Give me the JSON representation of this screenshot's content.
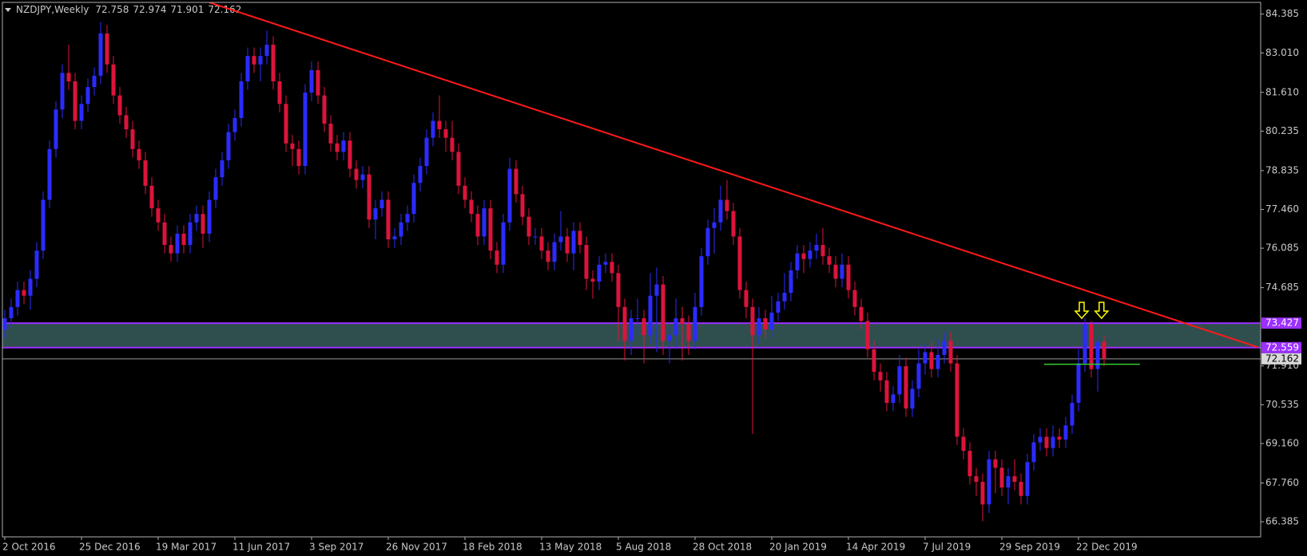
{
  "chart_data": {
    "type": "candlestick",
    "title": "NZDJPY,Weekly",
    "categories": [
      "2 Oct 2016",
      null,
      null,
      null,
      null,
      null,
      null,
      null,
      null,
      null,
      null,
      null,
      "25 Dec 2016",
      null,
      null,
      null,
      null,
      null,
      null,
      null,
      null,
      null,
      null,
      null,
      "19 Mar 2017",
      null,
      null,
      null,
      null,
      null,
      null,
      null,
      null,
      null,
      null,
      null,
      "11 Jun 2017",
      null,
      null,
      null,
      null,
      null,
      null,
      null,
      null,
      null,
      null,
      null,
      "3 Sep 2017",
      null,
      null,
      null,
      null,
      null,
      null,
      null,
      null,
      null,
      null,
      null,
      "26 Nov 2017",
      null,
      null,
      null,
      null,
      null,
      null,
      null,
      null,
      null,
      null,
      null,
      "18 Feb 2018",
      null,
      null,
      null,
      null,
      null,
      null,
      null,
      null,
      null,
      null,
      null,
      "13 May 2018",
      null,
      null,
      null,
      null,
      null,
      null,
      null,
      null,
      null,
      null,
      null,
      "5 Aug 2018",
      null,
      null,
      null,
      null,
      null,
      null,
      null,
      null,
      null,
      null,
      null,
      "28 Oct 2018",
      null,
      null,
      null,
      null,
      null,
      null,
      null,
      null,
      null,
      null,
      null,
      "20 Jan 2019",
      null,
      null,
      null,
      null,
      null,
      null,
      null,
      null,
      null,
      null,
      null,
      "14 Apr 2019",
      null,
      null,
      null,
      null,
      null,
      null,
      null,
      null,
      null,
      null,
      null,
      "7 Jul 2019",
      null,
      null,
      null,
      null,
      null,
      null,
      null,
      null,
      null,
      null,
      null,
      "29 Sep 2019",
      null,
      null,
      null,
      null,
      null,
      null,
      null,
      null,
      null,
      null,
      null,
      "22 Dec 2019",
      null,
      null,
      null,
      null
    ],
    "open": [
      73.2,
      73.6,
      74.0,
      74.6,
      74.4,
      75.0,
      76.0,
      77.8,
      79.6,
      81.0,
      82.3,
      82.0,
      80.6,
      81.2,
      81.8,
      82.2,
      83.7,
      82.6,
      81.5,
      80.8,
      80.3,
      79.6,
      79.2,
      78.3,
      77.5,
      77.0,
      76.2,
      75.9,
      76.6,
      76.2,
      77.0,
      77.3,
      76.6,
      77.8,
      78.6,
      79.2,
      80.2,
      80.7,
      82.0,
      82.9,
      82.6,
      82.9,
      83.3,
      82.0,
      81.2,
      79.8,
      79.6,
      79.0,
      81.6,
      82.4,
      81.5,
      80.5,
      79.8,
      79.5,
      79.9,
      78.9,
      78.5,
      78.7,
      77.1,
      77.5,
      77.8,
      76.4,
      76.5,
      77.0,
      77.3,
      78.4,
      79.0,
      80.0,
      80.6,
      80.3,
      80.0,
      79.5,
      78.3,
      77.8,
      77.3,
      76.5,
      77.5,
      76.0,
      75.5,
      77.0,
      78.9,
      78.0,
      77.2,
      76.5,
      76.5,
      76.0,
      75.6,
      76.3,
      76.5,
      75.9,
      76.7,
      76.2,
      75.0,
      74.9,
      75.5,
      75.6,
      75.2,
      74.0,
      72.8,
      73.6,
      73.6,
      73.0,
      74.4,
      74.8,
      72.8,
      73.0,
      73.6,
      73.4,
      72.8,
      74.0,
      75.8,
      76.8,
      77.0,
      77.8,
      77.4,
      76.5,
      74.6,
      74.0,
      73.0,
      73.6,
      73.2,
      73.8,
      74.2,
      74.5,
      75.3,
      75.9,
      75.7,
      76.0,
      76.2,
      75.8,
      75.5,
      75.0,
      75.5,
      74.6,
      74.0,
      73.5,
      72.5,
      71.7,
      71.4,
      70.6,
      70.9,
      71.9,
      70.4,
      71.1,
      72.0,
      72.4,
      71.8,
      72.3,
      72.8,
      72.0,
      69.4,
      68.9,
      68.0,
      67.8,
      67.0,
      68.6,
      68.3,
      67.6,
      68.0,
      67.8,
      67.3,
      68.5,
      69.2,
      69.4,
      69.0,
      69.4,
      69.3,
      69.8,
      70.6,
      72.0,
      73.4,
      71.8,
      72.758
    ],
    "high": [
      73.9,
      74.3,
      74.9,
      74.9,
      75.3,
      76.3,
      78.1,
      79.9,
      81.3,
      82.6,
      83.3,
      82.3,
      81.5,
      82.1,
      82.5,
      84.1,
      84.0,
      82.9,
      81.8,
      81.1,
      80.6,
      79.9,
      79.5,
      78.6,
      77.8,
      77.3,
      76.5,
      76.9,
      76.9,
      77.3,
      77.6,
      77.6,
      78.1,
      78.9,
      79.5,
      80.5,
      81.0,
      82.3,
      83.2,
      83.2,
      83.2,
      83.8,
      83.6,
      82.3,
      81.5,
      80.1,
      79.9,
      81.9,
      82.7,
      82.7,
      81.8,
      80.8,
      80.1,
      80.2,
      80.2,
      79.2,
      79.0,
      79.0,
      77.8,
      78.1,
      78.1,
      76.8,
      77.3,
      77.6,
      78.7,
      79.3,
      80.3,
      80.9,
      81.5,
      80.6,
      80.6,
      79.8,
      78.6,
      78.1,
      77.6,
      77.8,
      77.8,
      76.3,
      77.3,
      79.3,
      79.2,
      78.3,
      77.5,
      76.8,
      76.8,
      76.3,
      76.6,
      77.4,
      76.8,
      77.0,
      77.0,
      76.5,
      75.3,
      75.8,
      75.9,
      75.9,
      75.5,
      74.3,
      73.9,
      74.3,
      73.9,
      75.2,
      75.4,
      75.1,
      73.3,
      74.3,
      74.0,
      73.7,
      74.5,
      76.1,
      77.1,
      77.5,
      78.3,
      78.5,
      77.7,
      76.8,
      74.9,
      74.3,
      74.0,
      73.9,
      74.4,
      74.5,
      75.2,
      75.6,
      76.2,
      76.2,
      76.3,
      76.6,
      76.8,
      76.1,
      75.8,
      75.9,
      75.8,
      74.9,
      74.3,
      73.8,
      72.8,
      72.0,
      71.7,
      71.2,
      72.3,
      72.2,
      71.4,
      72.5,
      72.7,
      72.8,
      72.9,
      73.1,
      73.1,
      72.3,
      69.7,
      69.2,
      68.3,
      68.1,
      68.9,
      68.9,
      68.6,
      68.3,
      68.6,
      68.1,
      68.8,
      69.5,
      69.7,
      69.7,
      69.8,
      69.7,
      70.1,
      70.9,
      72.5,
      73.6,
      73.5,
      72.9,
      72.974
    ],
    "low": [
      72.9,
      73.3,
      73.7,
      74.1,
      73.9,
      74.7,
      75.7,
      77.5,
      79.3,
      80.7,
      81.7,
      80.3,
      80.3,
      80.9,
      81.5,
      81.9,
      82.3,
      81.2,
      80.5,
      80.0,
      79.3,
      78.9,
      78.0,
      77.2,
      76.7,
      75.9,
      75.6,
      75.6,
      75.9,
      75.9,
      76.7,
      76.1,
      76.3,
      77.5,
      78.3,
      78.9,
      79.9,
      80.4,
      81.7,
      82.3,
      82.0,
      82.6,
      81.7,
      80.9,
      79.5,
      79.0,
      78.7,
      78.7,
      81.3,
      81.2,
      80.2,
      79.5,
      79.2,
      79.2,
      78.6,
      78.2,
      78.2,
      76.8,
      76.4,
      77.2,
      76.1,
      76.1,
      76.2,
      76.7,
      77.0,
      78.1,
      78.7,
      79.7,
      80.0,
      79.5,
      79.2,
      78.0,
      77.5,
      77.0,
      76.2,
      76.2,
      75.7,
      75.2,
      75.2,
      76.7,
      77.7,
      76.9,
      76.2,
      76.2,
      75.7,
      75.3,
      75.3,
      76.0,
      75.6,
      75.3,
      75.9,
      74.6,
      74.3,
      74.6,
      75.2,
      74.9,
      72.8,
      72.1,
      72.3,
      73.0,
      72.0,
      72.7,
      72.4,
      72.3,
      72.0,
      72.5,
      72.1,
      72.3,
      72.5,
      73.7,
      75.5,
      75.9,
      76.7,
      77.1,
      76.2,
      74.3,
      73.6,
      69.5,
      72.7,
      72.9,
      72.9,
      73.5,
      73.9,
      74.2,
      75.0,
      75.2,
      75.4,
      75.7,
      75.5,
      75.2,
      74.7,
      74.7,
      74.3,
      73.7,
      73.2,
      72.2,
      71.4,
      71.0,
      70.3,
      70.3,
      70.6,
      70.1,
      70.1,
      70.8,
      71.6,
      71.5,
      71.5,
      72.0,
      71.7,
      69.1,
      68.6,
      67.7,
      67.3,
      66.4,
      66.7,
      67.4,
      67.3,
      67.0,
      67.5,
      67.0,
      67.0,
      68.2,
      68.9,
      68.7,
      68.7,
      69.0,
      69.0,
      69.5,
      70.3,
      71.7,
      71.5,
      71.0,
      71.901
    ],
    "close": [
      73.6,
      74.0,
      74.6,
      74.4,
      75.0,
      76.0,
      77.8,
      79.6,
      81.0,
      82.3,
      82.0,
      80.6,
      81.2,
      81.8,
      82.2,
      83.7,
      82.6,
      81.5,
      80.8,
      80.3,
      79.6,
      79.2,
      78.3,
      77.5,
      77.0,
      76.2,
      75.9,
      76.6,
      76.2,
      77.0,
      77.3,
      76.6,
      77.8,
      78.6,
      79.2,
      80.2,
      80.7,
      82.0,
      82.9,
      82.6,
      82.9,
      83.3,
      82.0,
      81.2,
      79.8,
      79.6,
      79.0,
      81.6,
      82.4,
      81.5,
      80.5,
      79.8,
      79.5,
      79.9,
      78.9,
      78.5,
      78.7,
      77.1,
      77.5,
      77.8,
      76.4,
      76.5,
      77.0,
      77.3,
      78.4,
      79.0,
      80.0,
      80.6,
      80.3,
      80.0,
      79.5,
      78.3,
      77.8,
      77.3,
      76.5,
      77.5,
      76.0,
      75.5,
      77.0,
      78.9,
      78.0,
      77.2,
      76.5,
      76.5,
      76.0,
      75.6,
      76.3,
      76.5,
      75.9,
      76.7,
      76.2,
      75.0,
      74.9,
      75.5,
      75.6,
      75.2,
      74.0,
      72.8,
      73.6,
      73.6,
      73.0,
      74.4,
      74.8,
      72.8,
      73.0,
      73.6,
      73.4,
      72.8,
      74.0,
      75.8,
      76.8,
      77.0,
      77.8,
      77.4,
      76.5,
      74.6,
      74.0,
      73.0,
      73.6,
      73.2,
      73.8,
      74.2,
      74.5,
      75.3,
      75.9,
      75.7,
      76.0,
      76.2,
      75.8,
      75.5,
      75.0,
      75.5,
      74.6,
      74.0,
      73.5,
      72.5,
      71.7,
      71.4,
      70.6,
      70.9,
      71.9,
      70.4,
      71.1,
      72.0,
      72.4,
      71.8,
      72.3,
      72.8,
      72.0,
      69.4,
      68.9,
      68.0,
      67.8,
      67.0,
      68.6,
      68.3,
      67.6,
      68.0,
      67.8,
      67.3,
      68.5,
      69.2,
      69.4,
      69.0,
      69.4,
      69.3,
      69.8,
      70.6,
      72.0,
      73.4,
      71.8,
      72.758,
      72.162
    ],
    "up_color": "#2b2bff",
    "down_color": "#dc143c",
    "ylim": [
      65.85,
      84.8
    ],
    "yticks": [
      84.385,
      {
        "value": 83.01,
        "label": "83.010"
      },
      {
        "value": 81.61,
        "label": "81.610"
      },
      80.235,
      78.835,
      {
        "value": 77.46,
        "label": "77.460"
      },
      76.085,
      74.685,
      {
        "value": 71.91,
        "label": "71.910"
      },
      70.535,
      {
        "value": 69.16,
        "label": "69.160"
      },
      {
        "value": 67.76,
        "label": "67.760"
      },
      66.385
    ],
    "grid": false,
    "zone": {
      "top": 73.427,
      "bottom": 72.559,
      "color": "#2f4f4f",
      "border_color": "#9b30ff"
    },
    "trendline": {
      "x": [
        32,
        196
      ],
      "y": [
        84.8,
        72.58
      ],
      "color": "#ff1a1a"
    },
    "support_line": {
      "x": [
        162.6,
        177.6
      ],
      "y": 71.97,
      "color": "#32cd32"
    },
    "arrows": {
      "x": [
        168.5,
        171.6
      ],
      "y": 73.6,
      "color": "#ffff00"
    }
  }
}
